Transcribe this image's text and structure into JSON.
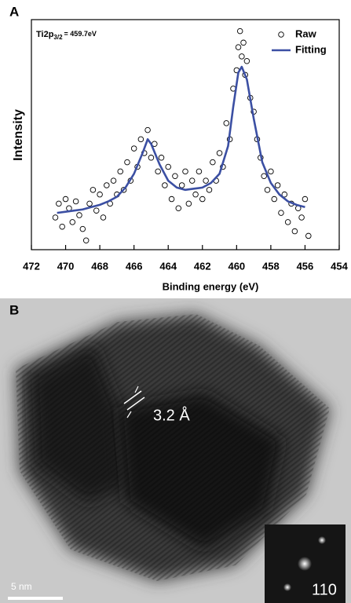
{
  "chart_data": {
    "type": "scatter",
    "panel": "A",
    "annotation": {
      "main": "Ti2p",
      "sub": "3/2",
      "rest": "= 459.7eV"
    },
    "x_label": "Binding energy (eV)",
    "y_label": "Intensity",
    "xlim": [
      472,
      454
    ],
    "ylim": [
      0,
      100
    ],
    "xticks": [
      472,
      470,
      468,
      466,
      464,
      462,
      460,
      458,
      456,
      454
    ],
    "legend": "top-right",
    "series": [
      {
        "name": "Raw",
        "kind": "scatter",
        "color": "#000000",
        "x": [
          470.6,
          470.4,
          470.2,
          470.0,
          469.8,
          469.6,
          469.4,
          469.2,
          469.0,
          468.8,
          468.6,
          468.4,
          468.2,
          468.0,
          467.8,
          467.6,
          467.4,
          467.2,
          467.0,
          466.8,
          466.6,
          466.4,
          466.2,
          466.0,
          465.8,
          465.6,
          465.4,
          465.2,
          465.0,
          464.8,
          464.6,
          464.4,
          464.2,
          464.0,
          463.8,
          463.6,
          463.4,
          463.2,
          463.0,
          462.8,
          462.6,
          462.4,
          462.2,
          462.0,
          461.8,
          461.6,
          461.4,
          461.2,
          461.0,
          460.8,
          460.6,
          460.4,
          460.2,
          460.0,
          459.9,
          459.8,
          459.7,
          459.6,
          459.5,
          459.4,
          459.2,
          459.0,
          458.8,
          458.6,
          458.4,
          458.2,
          458.0,
          457.8,
          457.6,
          457.4,
          457.2,
          457.0,
          456.8,
          456.6,
          456.4,
          456.2,
          456.0,
          455.8
        ],
        "values": [
          14,
          20,
          10,
          22,
          18,
          12,
          21,
          15,
          9,
          4,
          20,
          26,
          17,
          24,
          14,
          28,
          20,
          30,
          24,
          34,
          26,
          38,
          30,
          44,
          36,
          48,
          42,
          52,
          40,
          46,
          34,
          40,
          28,
          36,
          22,
          32,
          18,
          28,
          34,
          20,
          30,
          24,
          34,
          22,
          30,
          26,
          38,
          30,
          42,
          36,
          55,
          48,
          70,
          78,
          88,
          95,
          84,
          90,
          76,
          82,
          66,
          60,
          48,
          40,
          32,
          26,
          34,
          22,
          28,
          16,
          24,
          12,
          20,
          8,
          18,
          14,
          22,
          6
        ]
      },
      {
        "name": "Fitting",
        "kind": "line",
        "color": "#3b4fa3",
        "x": [
          470.5,
          470,
          469.5,
          469,
          468.5,
          468,
          467.5,
          467,
          466.5,
          466,
          465.5,
          465.2,
          465,
          464.5,
          464,
          463.5,
          463,
          462.5,
          462,
          461.5,
          461,
          460.5,
          460.2,
          459.9,
          459.7,
          459.4,
          459,
          458.5,
          458,
          457.5,
          457,
          456.5,
          456
        ],
        "values": [
          16,
          16.5,
          17,
          17.5,
          18.5,
          19.5,
          21,
          23,
          27,
          33,
          42,
          48,
          46,
          37,
          30,
          27,
          26,
          26.5,
          27,
          29,
          33,
          45,
          62,
          77,
          79.5,
          74,
          57,
          38,
          29,
          24,
          21,
          19.5,
          18.5
        ]
      }
    ]
  },
  "panel_b": {
    "label": "B",
    "lattice_label": "3.2 Å",
    "scale_label": "5 nm",
    "fft_label": "110"
  }
}
